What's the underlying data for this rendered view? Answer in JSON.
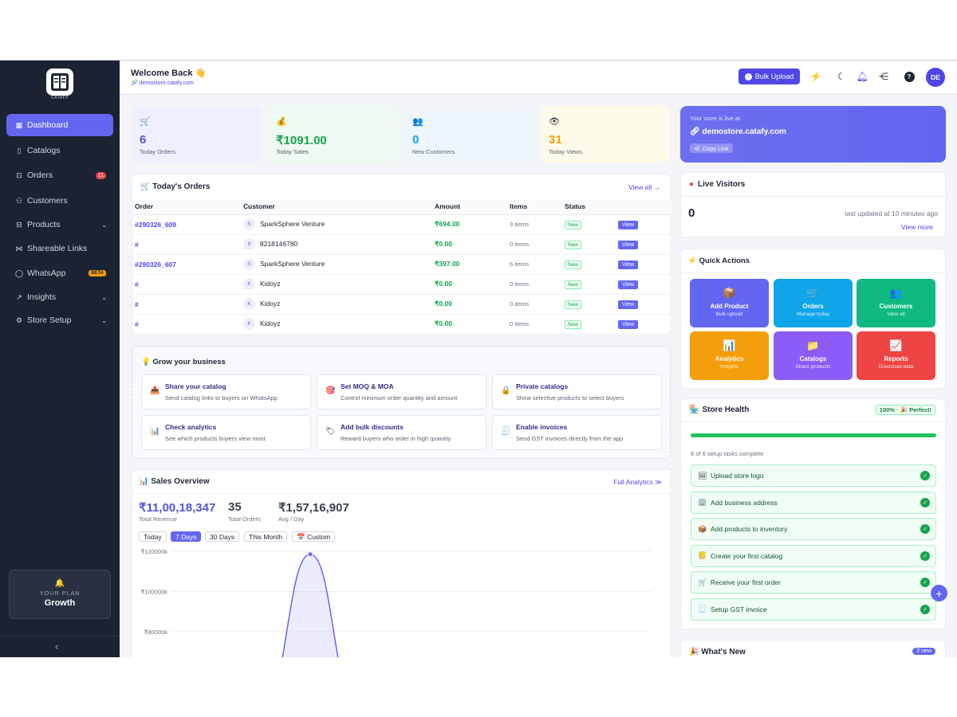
{
  "brand": {
    "name": "CATAFY"
  },
  "sidebar": {
    "items": [
      {
        "label": "Dashboard"
      },
      {
        "label": "Catalogs"
      },
      {
        "label": "Orders",
        "badge": "11"
      },
      {
        "label": "Customers"
      },
      {
        "label": "Products"
      },
      {
        "label": "Shareable Links"
      },
      {
        "label": "WhatsApp",
        "badge": "BETA"
      },
      {
        "label": "Insights"
      },
      {
        "label": "Store Setup"
      }
    ],
    "plan": {
      "label": "YOUR PLAN",
      "name": "Growth"
    }
  },
  "header": {
    "title": "Welcome Back 👋",
    "store_url": "demostore.catafy.com",
    "bulk_upload": "Bulk Upload",
    "avatar": "DE"
  },
  "stats": [
    {
      "icon": "🛒",
      "value": "6",
      "label": "Today Orders",
      "color": "#4f56d3"
    },
    {
      "icon": "💰",
      "value": "₹1091.00",
      "label": "Today Sales",
      "color": "#16a34a"
    },
    {
      "icon": "👥",
      "value": "0",
      "label": "New Customers",
      "color": "#0ea5e9"
    },
    {
      "icon": "👁",
      "value": "31",
      "label": "Today Views",
      "color": "#f59e0b"
    }
  ],
  "orders": {
    "title": "🛒 Today's Orders",
    "view_all": "View all →",
    "columns": [
      "Order",
      "Customer",
      "Amount",
      "Items",
      "Status"
    ],
    "rows": [
      {
        "order": "#290326_609",
        "initial": "S",
        "customer": "SparkSphere Venture",
        "amount": "₹694.00",
        "items": "3 items",
        "status": "New",
        "action": "View"
      },
      {
        "order": "#",
        "initial": "8",
        "customer": "8218146780",
        "amount": "₹0.00",
        "items": "0 items",
        "status": "New",
        "action": "View"
      },
      {
        "order": "#290326_607",
        "initial": "S",
        "customer": "SparkSphere Venture",
        "amount": "₹397.00",
        "items": "6 items",
        "status": "New",
        "action": "View"
      },
      {
        "order": "#",
        "initial": "K",
        "customer": "Kidoyz",
        "amount": "₹0.00",
        "items": "0 items",
        "status": "New",
        "action": "View"
      },
      {
        "order": "#",
        "initial": "K",
        "customer": "Kidoyz",
        "amount": "₹0.00",
        "items": "0 items",
        "status": "New",
        "action": "View"
      },
      {
        "order": "#",
        "initial": "K",
        "customer": "Kidoyz",
        "amount": "₹0.00",
        "items": "0 items",
        "status": "New",
        "action": "View"
      }
    ]
  },
  "grow": {
    "title": "💡 Grow your business",
    "items": [
      {
        "icon": "📤",
        "title": "Share your catalog",
        "desc": "Send catalog links to buyers on WhatsApp"
      },
      {
        "icon": "🎯",
        "title": "Set MOQ & MOA",
        "desc": "Control minimum order quantity and amount"
      },
      {
        "icon": "🔒",
        "title": "Private catalogs",
        "desc": "Show selective products to select buyers"
      },
      {
        "icon": "📊",
        "title": "Check analytics",
        "desc": "See which products buyers view most"
      },
      {
        "icon": "🏷",
        "title": "Add bulk discounts",
        "desc": "Reward buyers who order in high quantity"
      },
      {
        "icon": "🧾",
        "title": "Enable invoices",
        "desc": "Send GST invoices directly from the app"
      }
    ]
  },
  "sales": {
    "title": "📊 Sales Overview",
    "full_analytics": "Full Analytics ≫",
    "revenue": "₹11,00,18,347",
    "revenue_label": "Total Revenue",
    "orders": "35",
    "orders_label": "Total Orders",
    "avg": "₹1,57,16,907",
    "avg_label": "Avg / Day",
    "ranges": [
      "Today",
      "7 Days",
      "30 Days",
      "This Month",
      "📅 Custom"
    ],
    "active_range": "7 Days"
  },
  "chart_data": {
    "type": "area",
    "y_ticks": [
      "₹120000k",
      "₹100000k",
      "₹80000k"
    ],
    "ylim_visible": [
      75000,
      120000
    ],
    "peak_value": 118500,
    "color": "#6366f1"
  },
  "store_live": {
    "label": "Your store is live at",
    "url": "demostore.catafy.com",
    "copy": "Copy Link"
  },
  "visitors": {
    "title": "Live Visitors",
    "count": "0",
    "updated": "last updated at 10 minutes ago",
    "more": "View more"
  },
  "quick_actions": {
    "title": "⚡ Quick Actions",
    "items": [
      {
        "icon": "📦",
        "title": "Add Product",
        "sub": "Bulk upload",
        "color": "#6366f1"
      },
      {
        "icon": "🛒",
        "title": "Orders",
        "sub": "Manage today",
        "color": "#0ea5e9"
      },
      {
        "icon": "👥",
        "title": "Customers",
        "sub": "View all",
        "color": "#10b981"
      },
      {
        "icon": "📊",
        "title": "Analytics",
        "sub": "Insights",
        "color": "#f59e0b"
      },
      {
        "icon": "📁",
        "title": "Catalogs",
        "sub": "Share products",
        "color": "#8b5cf6"
      },
      {
        "icon": "📈",
        "title": "Reports",
        "sub": "Download data",
        "color": "#ef4444"
      }
    ]
  },
  "health": {
    "title": "Store Health",
    "badge": "100% · 🎉 Perfect!",
    "progress": 1.0,
    "summary": "6 of 6 setup tasks complete",
    "tasks": [
      {
        "icon": "🖼",
        "label": "Upload store logo"
      },
      {
        "icon": "🏢",
        "label": "Add business address"
      },
      {
        "icon": "📦",
        "label": "Add products to inventory"
      },
      {
        "icon": "📒",
        "label": "Create your first catalog"
      },
      {
        "icon": "🛒",
        "label": "Receive your first order"
      },
      {
        "icon": "🧾",
        "label": "Setup GST invoice"
      }
    ]
  },
  "whats_new": {
    "title": "🎉 What's New",
    "badge": "2 new"
  }
}
